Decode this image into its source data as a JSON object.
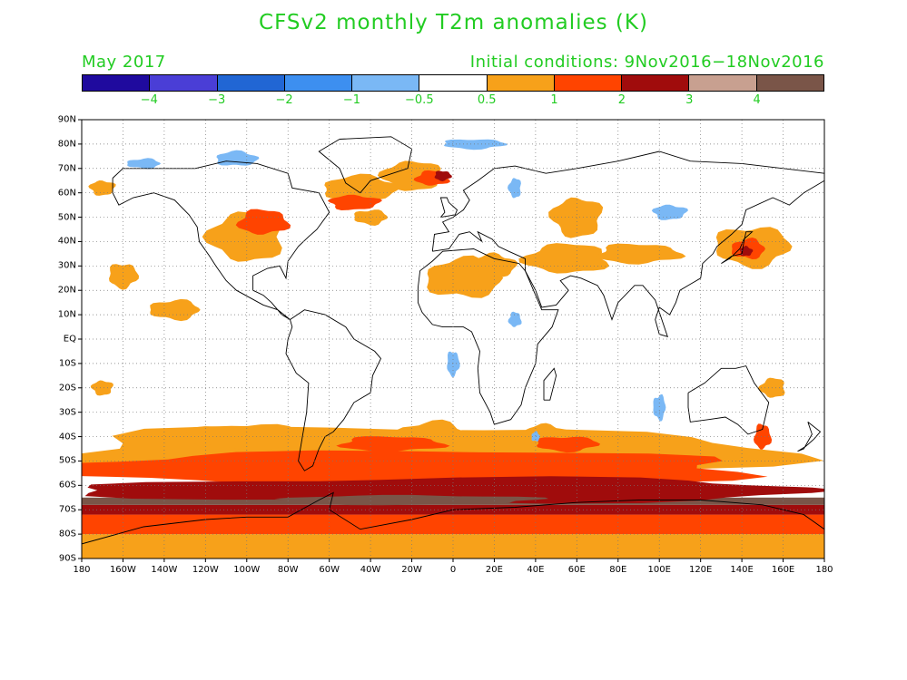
{
  "title": "CFSv2 monthly T2m anomalies (K)",
  "valid_month": "May 2017",
  "initial_conditions": "Initial conditions: 9Nov2016−18Nov2016",
  "legend": {
    "colors": [
      "#1f0a9e",
      "#4a3ed6",
      "#2166d4",
      "#3d8ff0",
      "#7ab8f5",
      "#ffffff",
      "#f7a11a",
      "#ff4400",
      "#a00c0c",
      "#c8a090",
      "#7a5548"
    ],
    "labels": [
      "−4",
      "−3",
      "−2",
      "−1",
      "−0.5",
      "0.5",
      "1",
      "2",
      "3",
      "4"
    ]
  },
  "axes": {
    "lat_labels": [
      "90N",
      "80N",
      "70N",
      "60N",
      "50N",
      "40N",
      "30N",
      "20N",
      "10N",
      "EQ",
      "10S",
      "20S",
      "30S",
      "40S",
      "50S",
      "60S",
      "70S",
      "80S",
      "90S"
    ],
    "lon_labels": [
      "180",
      "160W",
      "140W",
      "120W",
      "100W",
      "80W",
      "60W",
      "40W",
      "20W",
      "0",
      "20E",
      "40E",
      "60E",
      "80E",
      "100E",
      "120E",
      "140E",
      "160E",
      "180"
    ]
  },
  "colors": {
    "text": "#22cc22",
    "ant_orange": "#f7a11a",
    "ant_red": "#ff4400",
    "ant_darkred": "#a00c0c",
    "ant_tan": "#c8a090",
    "ant_brown": "#7a5548",
    "ant_blue": "#7ab8f5"
  },
  "anomaly_regions": [
    {
      "level": "0.5",
      "lon": -20,
      "lat": -47,
      "rx": 175,
      "ry": 11
    },
    {
      "level": "0.5",
      "lon": -100,
      "lat": -40,
      "rx": 30,
      "ry": 5
    },
    {
      "level": "0.5",
      "lon": -10,
      "lat": -40,
      "rx": 18,
      "ry": 6
    },
    {
      "level": "0.5",
      "lon": 45,
      "lat": -39,
      "rx": 10,
      "ry": 4
    },
    {
      "level": "0.5",
      "lon": -170,
      "lat": -20,
      "rx": 5,
      "ry": 3
    },
    {
      "level": "1",
      "lon": -25,
      "lat": -53,
      "rx": 175,
      "ry": 7
    },
    {
      "level": "1",
      "lon": -30,
      "lat": -43,
      "rx": 25,
      "ry": 3
    },
    {
      "level": "1",
      "lon": 55,
      "lat": -43,
      "rx": 15,
      "ry": 3
    },
    {
      "level": "2",
      "lon": 0,
      "lat": -62,
      "rx": 180,
      "ry": 5
    },
    {
      "level": "3",
      "lon": -30,
      "lat": -63,
      "rx": 90,
      "ry": 3
    },
    {
      "level": "4",
      "lon": -20,
      "lat": -66,
      "rx": 60,
      "ry": 2
    },
    {
      "level": "0.5",
      "lon": -100,
      "lat": 42,
      "rx": 18,
      "ry": 10
    },
    {
      "level": "1",
      "lon": -92,
      "lat": 48,
      "rx": 12,
      "ry": 5
    },
    {
      "level": "0.5",
      "lon": -160,
      "lat": 26,
      "rx": 7,
      "ry": 5
    },
    {
      "level": "0.5",
      "lon": -135,
      "lat": 12,
      "rx": 12,
      "ry": 4
    },
    {
      "level": "0.5",
      "lon": -45,
      "lat": 62,
      "rx": 18,
      "ry": 5
    },
    {
      "level": "1",
      "lon": -48,
      "lat": 56,
      "rx": 12,
      "ry": 3
    },
    {
      "level": "0.5",
      "lon": -20,
      "lat": 67,
      "rx": 14,
      "ry": 6
    },
    {
      "level": "1",
      "lon": -10,
      "lat": 66,
      "rx": 8,
      "ry": 3
    },
    {
      "level": "3",
      "lon": -5,
      "lat": 67,
      "rx": 4,
      "ry": 2
    },
    {
      "level": "0.5",
      "lon": -40,
      "lat": 50,
      "rx": 8,
      "ry": 3
    },
    {
      "level": "0.5",
      "lon": 5,
      "lat": 25,
      "rx": 18,
      "ry": 8
    },
    {
      "level": "0.5",
      "lon": 20,
      "lat": 30,
      "rx": 10,
      "ry": 5
    },
    {
      "level": "0.5",
      "lon": 60,
      "lat": 50,
      "rx": 12,
      "ry": 8
    },
    {
      "level": "0.5",
      "lon": 55,
      "lat": 33,
      "rx": 20,
      "ry": 6
    },
    {
      "level": "0.5",
      "lon": 90,
      "lat": 35,
      "rx": 20,
      "ry": 4
    },
    {
      "level": "0.5",
      "lon": 145,
      "lat": 38,
      "rx": 18,
      "ry": 8
    },
    {
      "level": "1",
      "lon": 143,
      "lat": 37,
      "rx": 8,
      "ry": 4
    },
    {
      "level": "2",
      "lon": 142,
      "lat": 36,
      "rx": 3,
      "ry": 2
    },
    {
      "level": "0.5",
      "lon": -170,
      "lat": 62,
      "rx": 6,
      "ry": 3
    },
    {
      "level": "0.5",
      "lon": 155,
      "lat": -20,
      "rx": 6,
      "ry": 4
    },
    {
      "level": "1",
      "lon": 150,
      "lat": -40,
      "rx": 4,
      "ry": 5
    },
    {
      "level": "-0.5",
      "lon": 10,
      "lat": 80,
      "rx": 15,
      "ry": 2
    },
    {
      "level": "-0.5",
      "lon": -150,
      "lat": 72,
      "rx": 8,
      "ry": 2
    },
    {
      "level": "-0.5",
      "lon": -105,
      "lat": 74,
      "rx": 10,
      "ry": 3
    },
    {
      "level": "-0.5",
      "lon": 105,
      "lat": 52,
      "rx": 8,
      "ry": 3
    },
    {
      "level": "-0.5",
      "lon": 30,
      "lat": 62,
      "rx": 3,
      "ry": 4
    },
    {
      "level": "-0.5",
      "lon": 30,
      "lat": 8,
      "rx": 3,
      "ry": 3
    },
    {
      "level": "-0.5",
      "lon": 0,
      "lat": -10,
      "rx": 3,
      "ry": 5
    },
    {
      "level": "-0.5",
      "lon": 100,
      "lat": -28,
      "rx": 3,
      "ry": 5
    },
    {
      "level": "-0.5",
      "lon": 40,
      "lat": -40,
      "rx": 2,
      "ry": 2
    }
  ],
  "antarctic_bands": [
    {
      "level": "0.5",
      "lat_top": -80,
      "lat_bot": -90
    },
    {
      "level": "1",
      "lat_top": -72,
      "lat_bot": -80
    },
    {
      "level": "2",
      "lat_top": -68,
      "lat_bot": -72
    },
    {
      "level": "4",
      "lat_top": -65,
      "lat_bot": -68
    }
  ]
}
